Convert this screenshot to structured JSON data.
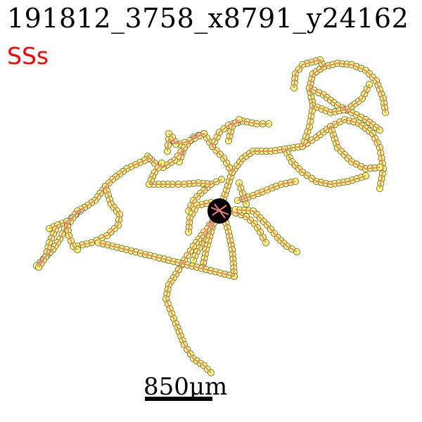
{
  "header": {
    "title": "191812_3758_x8791_y24162",
    "cell_type": "SSs"
  },
  "scale_bar": {
    "label": "850μm"
  },
  "colors": {
    "cell_type_text": "#ff0000",
    "branch": "#f08080",
    "node_fill": "#ffff66",
    "node_stroke": "#555555",
    "soma": "#000000"
  }
}
